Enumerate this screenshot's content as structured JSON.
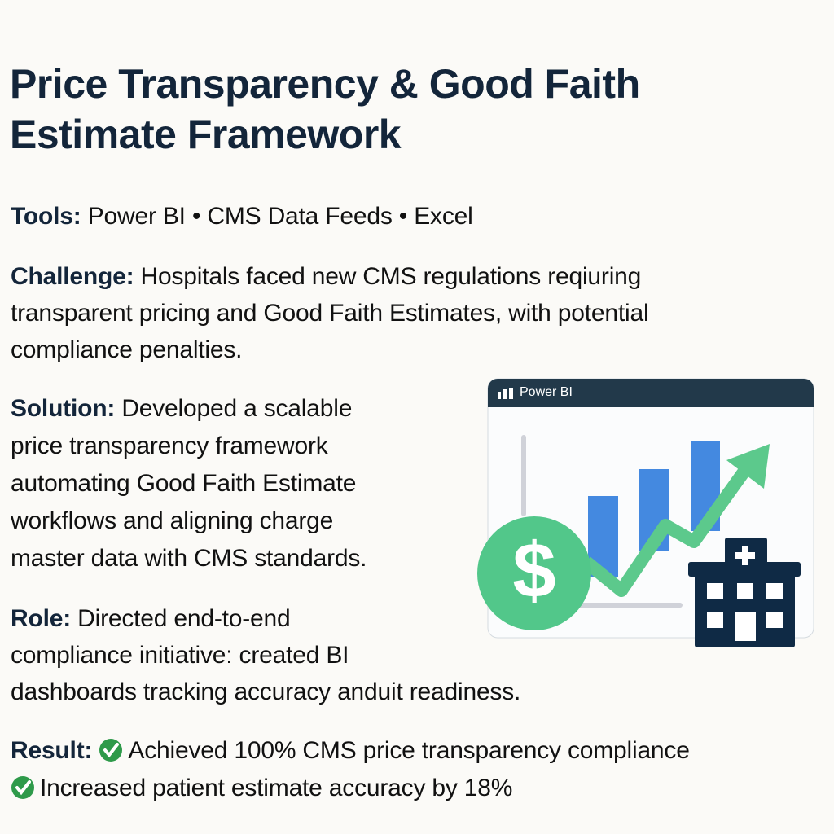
{
  "title": [
    "Price Transparency & Good Faith",
    "Estimate Framework"
  ],
  "tools": {
    "label": "Tools:",
    "text": "Power BI • CMS Data Feeds • Excel"
  },
  "challenge": {
    "label": "Challenge:",
    "lines": [
      "Hospitals faced new CMS regulations reqiuring",
      "transparent pricing and Good Faith Estimates, with potential",
      "compliance penalties."
    ]
  },
  "solution": {
    "label": "Solution:",
    "lines": [
      "Developed a scalable",
      "price transparency framework",
      "automating Good Faith Estimate",
      "workflows and aligning charge",
      "master data with CMS standards."
    ]
  },
  "role": {
    "label": "Role:",
    "lines": [
      "Directed end-to-end",
      "compliance initiative: created BI",
      "dashboards tracking accuracy anduit readiness."
    ]
  },
  "result": {
    "label": "Result:",
    "items": [
      "Achieved 100% CMS price transparency compliance",
      "Increased patient estimate accuracy by 18%"
    ]
  },
  "illustration": {
    "window_title": "Power BI",
    "colors": {
      "header": "#22394a",
      "bar": "#4489e0",
      "arrow": "#5cc98c",
      "building": "#0f2a45",
      "check": "#2e9a4a"
    }
  }
}
